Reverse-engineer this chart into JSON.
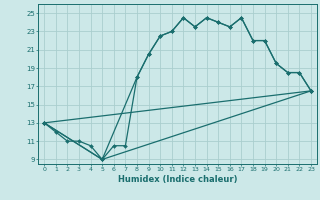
{
  "xlabel": "Humidex (Indice chaleur)",
  "xlim": [
    -0.5,
    23.5
  ],
  "ylim": [
    8.5,
    26
  ],
  "yticks": [
    9,
    11,
    13,
    15,
    17,
    19,
    21,
    23,
    25
  ],
  "xticks": [
    0,
    1,
    2,
    3,
    4,
    5,
    6,
    7,
    8,
    9,
    10,
    11,
    12,
    13,
    14,
    15,
    16,
    17,
    18,
    19,
    20,
    21,
    22,
    23
  ],
  "bg_color": "#cce8e8",
  "grid_color": "#aacece",
  "line_color": "#1a6e6e",
  "series1": [
    [
      0,
      13
    ],
    [
      1,
      12
    ],
    [
      2,
      11
    ],
    [
      3,
      11
    ],
    [
      4,
      10.5
    ],
    [
      5,
      9
    ],
    [
      6,
      10.5
    ],
    [
      7,
      10.5
    ],
    [
      8,
      18
    ],
    [
      9,
      20.5
    ],
    [
      10,
      22.5
    ],
    [
      11,
      23
    ],
    [
      12,
      24.5
    ],
    [
      13,
      23.5
    ],
    [
      14,
      24.5
    ],
    [
      15,
      24
    ],
    [
      16,
      23.5
    ],
    [
      17,
      24.5
    ],
    [
      18,
      22
    ],
    [
      19,
      22
    ],
    [
      20,
      19.5
    ],
    [
      21,
      18.5
    ],
    [
      22,
      18.5
    ],
    [
      23,
      16.5
    ]
  ],
  "series2": [
    [
      0,
      13
    ],
    [
      5,
      9
    ],
    [
      23,
      16.5
    ]
  ],
  "series3": [
    [
      0,
      13
    ],
    [
      5,
      9
    ],
    [
      8,
      18
    ],
    [
      9,
      20.5
    ],
    [
      10,
      22.5
    ],
    [
      11,
      23
    ],
    [
      12,
      24.5
    ],
    [
      13,
      23.5
    ],
    [
      14,
      24.5
    ],
    [
      15,
      24
    ],
    [
      16,
      23.5
    ],
    [
      17,
      24.5
    ],
    [
      18,
      22
    ],
    [
      19,
      22
    ],
    [
      20,
      19.5
    ],
    [
      21,
      18.5
    ],
    [
      22,
      18.5
    ],
    [
      23,
      16.5
    ]
  ],
  "series4": [
    [
      0,
      13
    ],
    [
      23,
      16.5
    ]
  ]
}
